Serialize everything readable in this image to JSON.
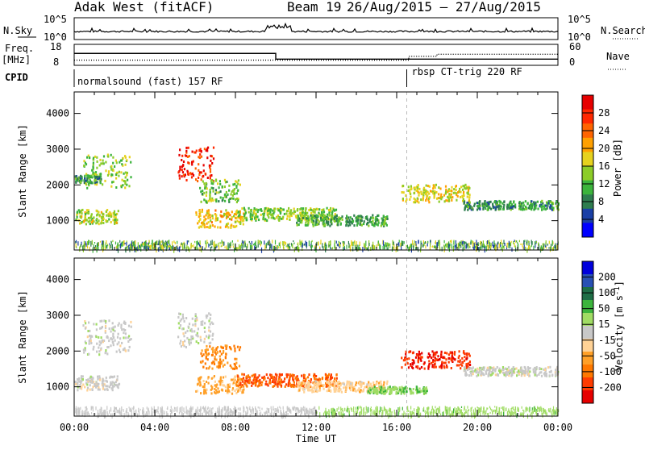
{
  "header": {
    "station": "Adak West (fitACF)",
    "beam": "Beam 19",
    "date_range": "26/Aug/2015 – 27/Aug/2015"
  },
  "strip": {
    "nsky_label": "N.Sky",
    "nsky_ticks": [
      "10^5",
      "10^0"
    ],
    "nsearch_label": "N.Search",
    "nsearch_ticks": [
      "10^5",
      "10^0"
    ],
    "freq_label": "Freq.",
    "freq_unit": "[MHz]",
    "freq_ticks": [
      "18",
      "8"
    ],
    "nave_label": "Nave",
    "nave_ticks": [
      "60",
      "0"
    ],
    "cpid_label": "CPID",
    "cpid_entries": [
      "normalsound (fast) 157 RF",
      "rbsp CT-trig 220 RF"
    ],
    "freq_steps": [
      {
        "start_h": 0,
        "end_h": 10,
        "mhz": 13.8
      },
      {
        "start_h": 10,
        "end_h": 24,
        "mhz": 10.6
      }
    ],
    "nave_steps": [
      {
        "start_h": 0,
        "end_h": 16.6,
        "value": 12
      },
      {
        "start_h": 16.6,
        "end_h": 18.0,
        "value": 25
      },
      {
        "start_h": 18.0,
        "end_h": 24,
        "value": 32
      }
    ],
    "cpid_change_h": 16.5
  },
  "chart_data": [
    {
      "type": "heatmap",
      "panel": "power",
      "ylabel": "Slant Range [km]",
      "xlabel": "",
      "x_ticks": [
        "00:00",
        "04:00",
        "08:00",
        "12:00",
        "16:00",
        "20:00",
        "00:00"
      ],
      "y_ticks": [
        "1000",
        "2000",
        "3000",
        "4000"
      ],
      "xlim_hours": [
        0,
        24
      ],
      "ylim_km": [
        180,
        4600
      ],
      "colorbar": {
        "label": "Power [dB]",
        "ticks": [
          "28",
          "24",
          "20",
          "16",
          "12",
          "8",
          "4"
        ],
        "range": [
          0,
          30
        ],
        "colors": [
          "#0000ff",
          "#1a3fa6",
          "#2e7d4f",
          "#3cb43c",
          "#8ccc28",
          "#e6d21e",
          "#ffa000",
          "#ff6400",
          "#ff2800",
          "#e60000"
        ]
      },
      "features": [
        {
          "t0": 0.4,
          "t1": 2.8,
          "r0": 1900,
          "r1": 2850,
          "level": 13,
          "desc": "rising arc"
        },
        {
          "t0": 0.0,
          "t1": 1.3,
          "r0": 2050,
          "r1": 2250,
          "level": 9
        },
        {
          "t0": 0.0,
          "t1": 2.2,
          "r0": 900,
          "r1": 1300,
          "level": 15
        },
        {
          "t0": 5.1,
          "t1": 6.9,
          "r0": 2100,
          "r1": 3050,
          "level": 26
        },
        {
          "t0": 6.2,
          "t1": 8.2,
          "r0": 1500,
          "r1": 2150,
          "level": 12
        },
        {
          "t0": 6.0,
          "t1": 8.4,
          "r0": 800,
          "r1": 1300,
          "level": 18
        },
        {
          "t0": 8.0,
          "t1": 13.0,
          "r0": 1000,
          "r1": 1350,
          "level": 13
        },
        {
          "t0": 11.0,
          "t1": 15.5,
          "r0": 850,
          "r1": 1150,
          "level": 10
        },
        {
          "t0": 16.2,
          "t1": 19.6,
          "r0": 1500,
          "r1": 2000,
          "level": 16
        },
        {
          "t0": 19.3,
          "t1": 24.0,
          "r0": 1300,
          "r1": 1550,
          "level": 9
        }
      ]
    },
    {
      "type": "heatmap",
      "panel": "velocity",
      "ylabel": "Slant Range [km]",
      "xlabel": "Time UT",
      "x_ticks": [
        "00:00",
        "04:00",
        "08:00",
        "12:00",
        "16:00",
        "20:00",
        "00:00"
      ],
      "y_ticks": [
        "1000",
        "2000",
        "3000",
        "4000"
      ],
      "xlim_hours": [
        0,
        24
      ],
      "ylim_km": [
        180,
        4600
      ],
      "colorbar": {
        "label": "Velocity [m s^-1]",
        "ticks": [
          "200",
          "100",
          "50",
          "15",
          "-15",
          "-50",
          "-100",
          "-200"
        ],
        "range": [
          -250,
          250
        ],
        "colors": [
          "#e60000",
          "#ff3c00",
          "#ff7800",
          "#ffa028",
          "#ffd296",
          "#c8c8c8",
          "#a0dc64",
          "#3cb43c",
          "#1e6e46",
          "#2850b4",
          "#0000dc"
        ]
      },
      "features": [
        {
          "t0": 0.4,
          "t1": 2.8,
          "r0": 1900,
          "r1": 2850,
          "level": 0
        },
        {
          "t0": 0.0,
          "t1": 2.2,
          "r0": 900,
          "r1": 1300,
          "level": 0
        },
        {
          "t0": 5.1,
          "t1": 6.9,
          "r0": 2100,
          "r1": 3050,
          "level": 0
        },
        {
          "t0": 6.2,
          "t1": 8.2,
          "r0": 1500,
          "r1": 2150,
          "level": -120
        },
        {
          "t0": 6.0,
          "t1": 8.4,
          "r0": 800,
          "r1": 1300,
          "level": -80
        },
        {
          "t0": 8.0,
          "t1": 13.0,
          "r0": 1000,
          "r1": 1350,
          "level": -160
        },
        {
          "t0": 11.0,
          "t1": 15.5,
          "r0": 850,
          "r1": 1150,
          "level": -50
        },
        {
          "t0": 14.5,
          "t1": 17.5,
          "r0": 800,
          "r1": 1000,
          "level": 60
        },
        {
          "t0": 16.2,
          "t1": 19.6,
          "r0": 1500,
          "r1": 2000,
          "level": -200
        },
        {
          "t0": 19.3,
          "t1": 24.0,
          "r0": 1300,
          "r1": 1550,
          "level": 0
        }
      ]
    }
  ]
}
